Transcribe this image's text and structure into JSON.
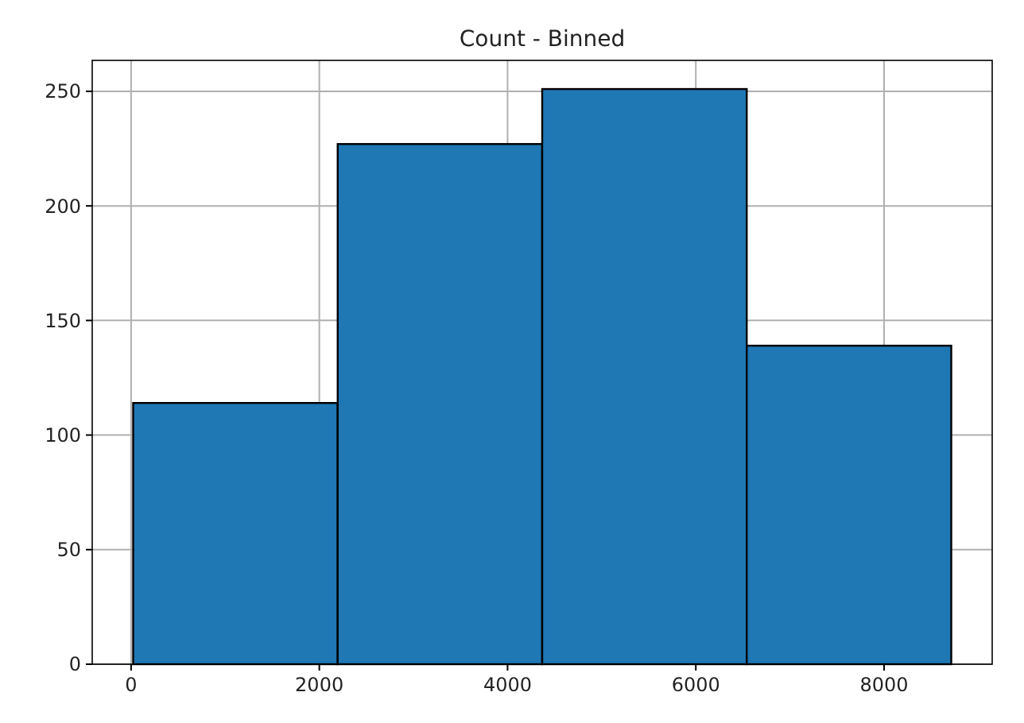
{
  "chart_data": {
    "type": "histogram",
    "title": "Count - Binned",
    "bins": [
      22,
      2195,
      4368,
      6541,
      8714
    ],
    "values": [
      114,
      227,
      251,
      139
    ],
    "color": "#1f77b4",
    "xlim": [
      -413,
      9149
    ],
    "xticks": [
      0,
      2000,
      4000,
      6000,
      8000
    ],
    "ylim": [
      0,
      263.5
    ],
    "yticks": [
      0,
      50,
      100,
      150,
      200,
      250
    ],
    "grid": true
  }
}
